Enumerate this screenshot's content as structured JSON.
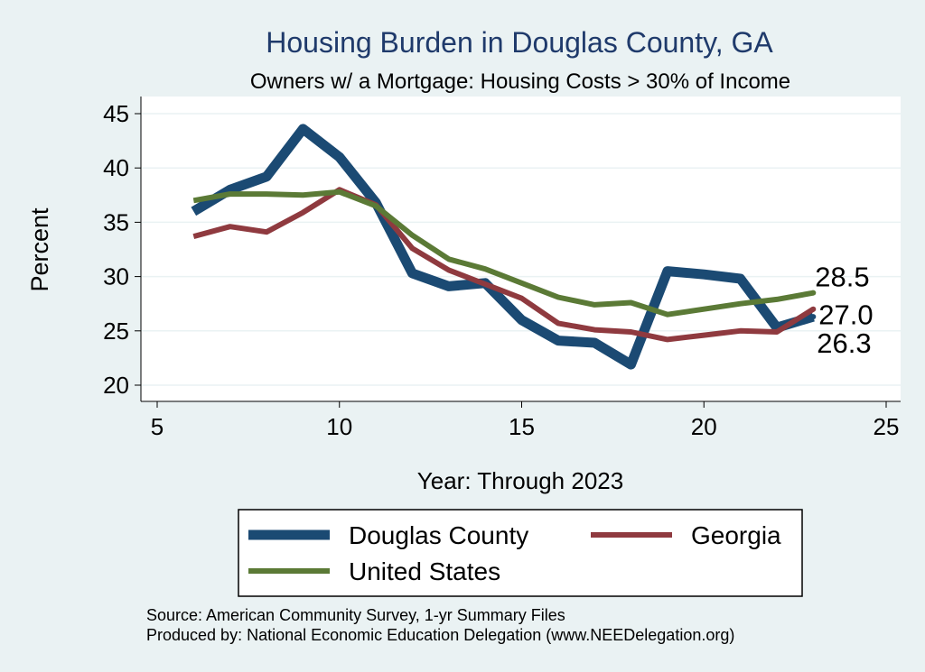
{
  "chart_data": {
    "type": "line",
    "title": "Housing Burden in Douglas County, GA",
    "subtitle": "Owners w/ a Mortgage: Housing Costs > 30% of Income",
    "xlabel": "Year: Through 2023",
    "ylabel": "Percent",
    "xlim": [
      5,
      25
    ],
    "ylim": [
      20,
      45
    ],
    "xticks": [
      "5",
      "10",
      "15",
      "20",
      "25"
    ],
    "yticks": [
      "20",
      "25",
      "30",
      "35",
      "40",
      "45"
    ],
    "grid": true,
    "legend_position": "bottom",
    "series": [
      {
        "name": "Douglas County",
        "color": "#1b4a73",
        "x": [
          6,
          7,
          8,
          9,
          10,
          11,
          12,
          13,
          14,
          15,
          16,
          17,
          18,
          19,
          20,
          21,
          22,
          23
        ],
        "values": [
          36.0,
          38.0,
          39.2,
          43.6,
          41.0,
          36.8,
          30.3,
          29.1,
          29.4,
          26.0,
          24.1,
          23.9,
          21.9,
          30.5,
          30.2,
          29.8,
          25.3,
          26.3
        ],
        "end_label": "26.3"
      },
      {
        "name": "Georgia",
        "color": "#8f3a3f",
        "x": [
          6,
          7,
          8,
          9,
          10,
          11,
          12,
          13,
          14,
          15,
          16,
          17,
          18,
          19,
          20,
          21,
          22,
          23
        ],
        "values": [
          33.7,
          34.6,
          34.1,
          35.9,
          38.0,
          36.6,
          32.6,
          30.6,
          29.3,
          28.0,
          25.7,
          25.1,
          24.9,
          24.2,
          24.6,
          25.0,
          24.9,
          27.0
        ],
        "end_label": "27.0"
      },
      {
        "name": "United States",
        "color": "#5b7a36",
        "x": [
          6,
          7,
          8,
          9,
          10,
          11,
          12,
          13,
          14,
          15,
          16,
          17,
          18,
          19,
          20,
          21,
          22,
          23
        ],
        "values": [
          37.0,
          37.6,
          37.6,
          37.5,
          37.8,
          36.5,
          33.8,
          31.6,
          30.7,
          29.4,
          28.1,
          27.4,
          27.6,
          26.5,
          27.0,
          27.5,
          27.9,
          28.5
        ],
        "end_label": "28.5"
      }
    ]
  },
  "notes": {
    "source": "Source: American Community Survey, 1-yr Summary Files",
    "produced_by": "Produced by: National Economic Education Delegation (www.NEEDelegation.org)"
  }
}
